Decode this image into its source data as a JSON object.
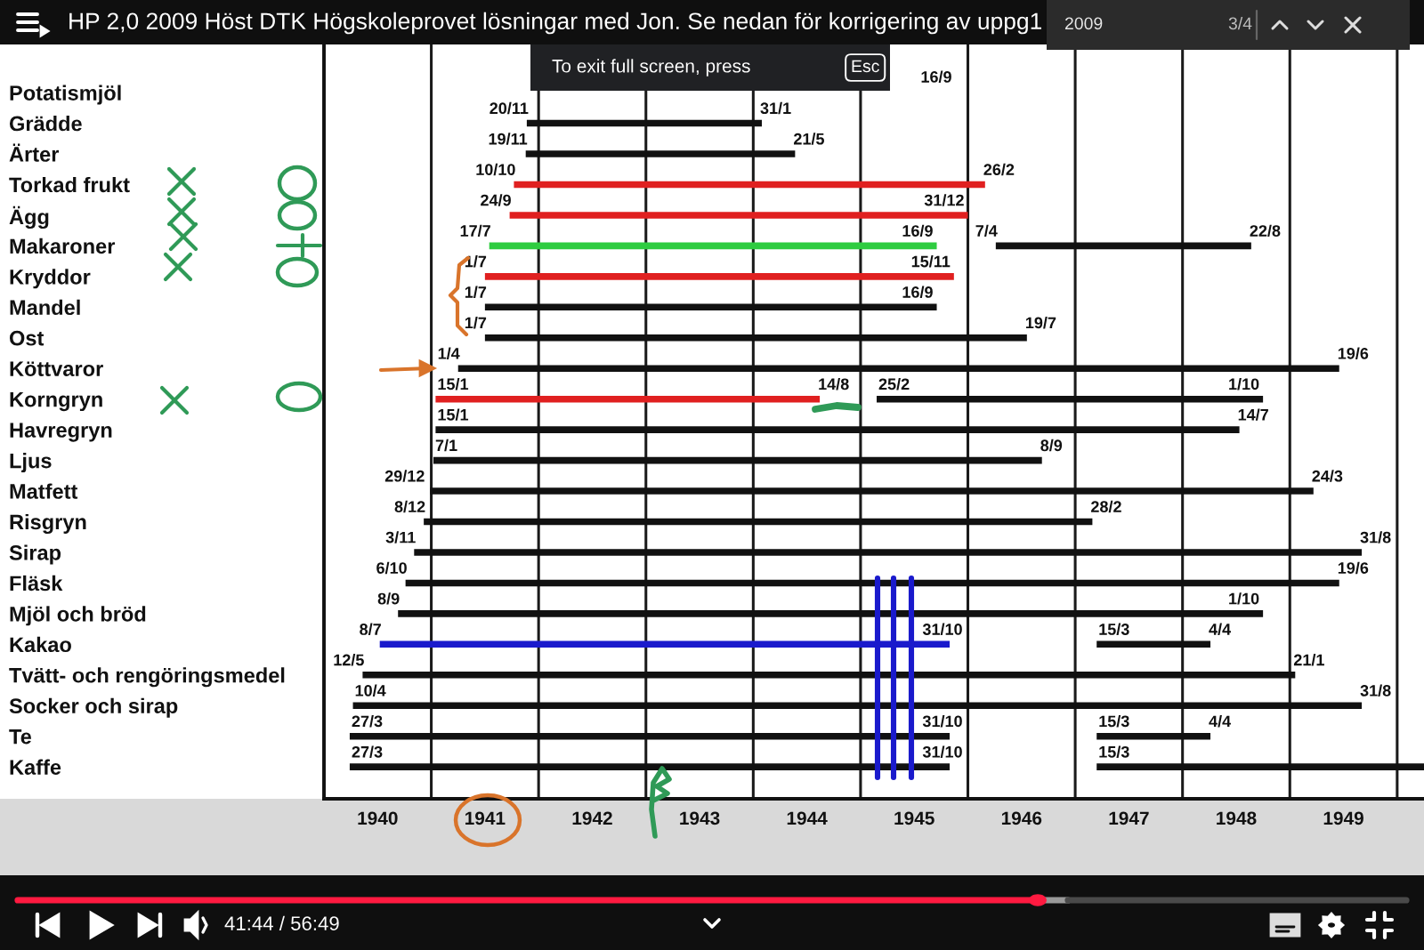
{
  "chart_data": {
    "type": "bar",
    "orientation": "horizontal",
    "title": "HP 2,0 2009 Höst DTK Högskoleprovet lösningar med Jon. Se nedan för korrigering av uppg1",
    "categories": [
      "Potatismjöl",
      "Grädde",
      "Ärter",
      "Torkad frukt",
      "Ägg",
      "Makaroner",
      "Kryddor",
      "Mandel",
      "Ost",
      "Köttvaror",
      "Korngryn",
      "Havregryn",
      "Ljus",
      "Matfett",
      "Risgryn",
      "Sirap",
      "Fläsk",
      "Mjöl och bröd",
      "Kakao",
      "Tvätt- och rengöringsmedel",
      "Socker och sirap",
      "Te",
      "Kaffe"
    ],
    "series": [
      {
        "base": [
          null,
          1941.89,
          1941.88,
          1941.77,
          1941.73,
          1941.54,
          1941.5,
          1941.5,
          1941.5,
          1941.25,
          1941.04,
          1941.04,
          1941.02,
          1940.99,
          1940.93,
          1940.84,
          1940.76,
          1940.69,
          1940.52,
          1940.36,
          1940.27,
          1940.24,
          1940.24
        ],
        "values": [
          null,
          2.19,
          2.51,
          4.39,
          4.27,
          4.17,
          4.37,
          4.21,
          5.05,
          8.21,
          3.58,
          7.49,
          5.67,
          8.23,
          6.23,
          8.83,
          8.7,
          8.06,
          5.31,
          8.69,
          9.4,
          5.59,
          5.59
        ],
        "colors": [
          null,
          "#111111",
          "#111111",
          "#e02020",
          "#e02020",
          "#2ecc40",
          "#e02020",
          "#111111",
          "#111111",
          "#111111",
          "#e02020",
          "#111111",
          "#111111",
          "#111111",
          "#111111",
          "#111111",
          "#111111",
          "#111111",
          "#1a1acc",
          "#111111",
          "#111111",
          "#111111",
          "#111111"
        ]
      },
      {
        "base": [
          null,
          null,
          null,
          null,
          null,
          1946.26,
          null,
          null,
          null,
          null,
          1945.15,
          null,
          null,
          null,
          null,
          null,
          null,
          null,
          1947.2,
          null,
          null,
          1947.2,
          1947.2
        ],
        "values": [
          null,
          null,
          null,
          null,
          null,
          2.38,
          null,
          null,
          null,
          null,
          3.6,
          null,
          null,
          null,
          null,
          null,
          null,
          null,
          1.06,
          null,
          null,
          1.06,
          3.05
        ],
        "colors": [
          null,
          null,
          null,
          null,
          null,
          "#111111",
          null,
          null,
          null,
          null,
          "#111111",
          null,
          null,
          null,
          null,
          null,
          null,
          null,
          "#111111",
          null,
          null,
          "#111111",
          "#111111"
        ]
      }
    ],
    "xlim": [
      1940,
      1950.25
    ],
    "xticks": [
      {
        "value": 1940,
        "label": null
      },
      {
        "value": 1940.5,
        "label": "1940"
      },
      {
        "value": 1941,
        "label": null
      },
      {
        "value": 1941.5,
        "label": "1941"
      },
      {
        "value": 1942,
        "label": null
      },
      {
        "value": 1942.5,
        "label": "1942"
      },
      {
        "value": 1943,
        "label": null
      },
      {
        "value": 1943.5,
        "label": "1943"
      },
      {
        "value": 1944,
        "label": null
      },
      {
        "value": 1944.5,
        "label": "1944"
      },
      {
        "value": 1945,
        "label": null
      },
      {
        "value": 1945.5,
        "label": "1945"
      },
      {
        "value": 1946,
        "label": null
      },
      {
        "value": 1946.5,
        "label": "1946"
      },
      {
        "value": 1947,
        "label": null
      },
      {
        "value": 1947.5,
        "label": "1947"
      },
      {
        "value": 1948,
        "label": null
      },
      {
        "value": 1948.5,
        "label": "1948"
      },
      {
        "value": 1949,
        "label": null
      },
      {
        "value": 1949.5,
        "label": "1949"
      },
      {
        "value": 1950,
        "label": null
      }
    ],
    "grid": "x",
    "annotations": [
      "16/9",
      {
        "text": "20/11",
        "x": 1941.89,
        "y": "Grädde"
      },
      {
        "text": "31/1",
        "x": 1944.08,
        "y": "Grädde"
      },
      {
        "text": "19/11",
        "x": 1941.88,
        "y": "Ärter"
      },
      {
        "text": "21/5",
        "x": 1944.39,
        "y": "Ärter"
      },
      {
        "text": "10/10",
        "x": 1941.77,
        "y": "Torkad frukt"
      },
      {
        "text": "26/2",
        "x": 1946.16,
        "y": "Torkad frukt"
      },
      {
        "text": "24/9",
        "x": 1941.73,
        "y": "Ägg"
      },
      {
        "text": "31/12",
        "x": 1946.0,
        "y": "Ägg"
      },
      {
        "text": "17/7",
        "x": 1941.54,
        "y": "Makaroner"
      },
      {
        "text": "16/9",
        "x": 1945.71,
        "y": "Makaroner"
      },
      {
        "text": "7/4",
        "x": 1946.26,
        "y": "Makaroner"
      },
      {
        "text": "22/8",
        "x": 1948.64,
        "y": "Makaroner"
      },
      {
        "text": "1/7",
        "x": 1941.5,
        "y": "Kryddor"
      },
      {
        "text": "15/11",
        "x": 1945.87,
        "y": "Kryddor"
      },
      {
        "text": "1/7",
        "x": 1941.5,
        "y": "Mandel"
      },
      {
        "text": "16/9",
        "x": 1945.71,
        "y": "Mandel"
      },
      {
        "text": "1/7",
        "x": 1941.5,
        "y": "Ost"
      },
      {
        "text": "19/7",
        "x": 1946.55,
        "y": "Ost"
      },
      {
        "text": "1/4",
        "x": 1941.25,
        "y": "Köttvaror"
      },
      {
        "text": "19/6",
        "x": 1949.46,
        "y": "Köttvaror"
      },
      {
        "text": "15/1",
        "x": 1941.04,
        "y": "Korngryn"
      },
      {
        "text": "14/8",
        "x": 1944.62,
        "y": "Korngryn"
      },
      {
        "text": "25/2",
        "x": 1945.15,
        "y": "Korngryn"
      },
      {
        "text": "1/10",
        "x": 1948.75,
        "y": "Korngryn"
      },
      {
        "text": "15/1",
        "x": 1941.04,
        "y": "Havregryn"
      },
      {
        "text": "14/7",
        "x": 1948.53,
        "y": "Havregryn"
      },
      {
        "text": "7/1",
        "x": 1941.02,
        "y": "Ljus"
      },
      {
        "text": "8/9",
        "x": 1946.69,
        "y": "Ljus"
      },
      {
        "text": "29/12",
        "x": 1940.99,
        "y": "Matfett"
      },
      {
        "text": "24/3",
        "x": 1949.22,
        "y": "Matfett"
      },
      {
        "text": "8/12",
        "x": 1940.93,
        "y": "Risgryn"
      },
      {
        "text": "28/2",
        "x": 1947.16,
        "y": "Risgryn"
      },
      {
        "text": "3/11",
        "x": 1940.84,
        "y": "Sirap"
      },
      {
        "text": "31/8",
        "x": 1949.67,
        "y": "Sirap"
      },
      {
        "text": "6/10",
        "x": 1940.76,
        "y": "Fläsk"
      },
      {
        "text": "19/6",
        "x": 1949.46,
        "y": "Fläsk"
      },
      {
        "text": "8/9",
        "x": 1940.69,
        "y": "Mjöl och bröd"
      },
      {
        "text": "1/10",
        "x": 1948.75,
        "y": "Mjöl och bröd"
      },
      {
        "text": "8/7",
        "x": 1940.52,
        "y": "Kakao"
      },
      {
        "text": "31/10",
        "x": 1945.83,
        "y": "Kakao"
      },
      {
        "text": "15/3",
        "x": 1947.2,
        "y": "Kakao"
      },
      {
        "text": "4/4",
        "x": 1948.26,
        "y": "Kakao"
      },
      {
        "text": "12/5",
        "x": 1940.36,
        "y": "Tvätt- och rengöringsmedel"
      },
      {
        "text": "21/1",
        "x": 1949.05,
        "y": "Tvätt- och rengöringsmedel"
      },
      {
        "text": "10/4",
        "x": 1940.27,
        "y": "Socker och sirap"
      },
      {
        "text": "31/8",
        "x": 1949.67,
        "y": "Socker och sirap"
      },
      {
        "text": "27/3",
        "x": 1940.24,
        "y": "Te"
      },
      {
        "text": "31/10",
        "x": 1945.83,
        "y": "Te"
      },
      {
        "text": "15/3",
        "x": 1947.2,
        "y": "Te"
      },
      {
        "text": "4/4",
        "x": 1948.26,
        "y": "Te"
      },
      {
        "text": "27/3",
        "x": 1940.24,
        "y": "Kaffe"
      },
      {
        "text": "31/10",
        "x": 1945.83,
        "y": "Kaffe"
      },
      {
        "text": "15/3",
        "x": 1947.2,
        "y": "Kaffe"
      },
      "To exit full screen, press",
      "Esc",
      "2009",
      "3/4",
      "41:44 / 56:49"
    ]
  }
}
